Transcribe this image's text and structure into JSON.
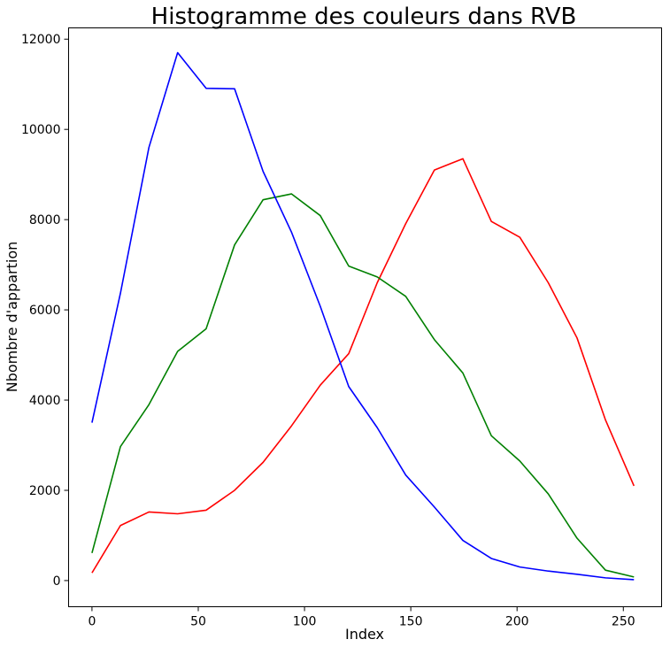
{
  "chart_data": {
    "type": "line",
    "title": "Histogramme des couleurs dans RVB",
    "xlabel": "Index",
    "ylabel": "Nbombre d'appartion",
    "xlim": [
      -11,
      268
    ],
    "ylim": [
      -580,
      12250
    ],
    "xticks": [
      0,
      50,
      100,
      150,
      200,
      250
    ],
    "yticks": [
      0,
      2000,
      4000,
      6000,
      8000,
      10000,
      12000
    ],
    "grid": false,
    "legend": "none",
    "x": [
      0,
      13.4,
      26.8,
      40.3,
      53.7,
      67.1,
      80.5,
      93.9,
      107.4,
      120.8,
      134.2,
      147.6,
      161.1,
      174.5,
      187.9,
      201.3,
      214.7,
      228.2,
      241.6,
      255
    ],
    "series": [
      {
        "color": "#ff0000",
        "values": [
          170,
          1220,
          1520,
          1480,
          1560,
          2000,
          2620,
          3430,
          4330,
          5030,
          6600,
          7910,
          9100,
          9350,
          7960,
          7610,
          6600,
          5380,
          3560,
          2100
        ]
      },
      {
        "color": "#008000",
        "values": [
          610,
          2970,
          3900,
          5080,
          5580,
          7440,
          8440,
          8570,
          8090,
          6970,
          6730,
          6300,
          5340,
          4600,
          3210,
          2650,
          1920,
          940,
          230,
          80
        ]
      },
      {
        "color": "#0000ff",
        "values": [
          3500,
          6370,
          9600,
          11700,
          10910,
          10900,
          9070,
          7720,
          6080,
          4300,
          3390,
          2340,
          1630,
          890,
          490,
          300,
          210,
          140,
          60,
          20
        ]
      }
    ]
  }
}
